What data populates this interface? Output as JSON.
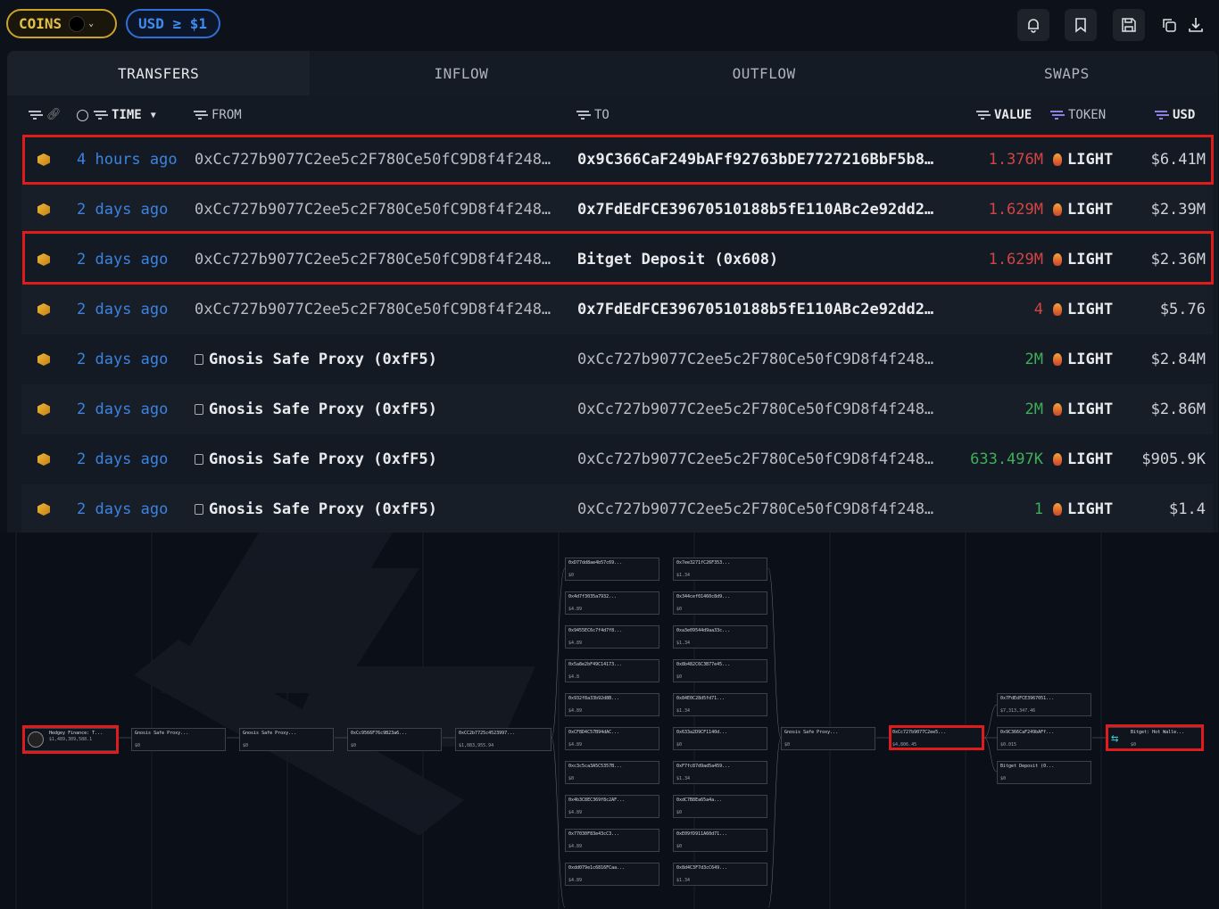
{
  "toolbar": {
    "coins_label": "COINS",
    "usd_filter": "USD ≥ $1"
  },
  "tabs": [
    "TRANSFERS",
    "INFLOW",
    "OUTFLOW",
    "SWAPS"
  ],
  "columns": {
    "time": "TIME",
    "from": "FROM",
    "to": "TO",
    "value": "VALUE",
    "token": "TOKEN",
    "usd": "USD"
  },
  "rows": [
    {
      "time": "4 hours ago",
      "from": "0xCc727b9077C2ee5c2F780Ce50fC9D8f4f248…",
      "to": "0x9C366CaF249bAFf92763bDE7727216BbF5b8…",
      "value": "1.376M",
      "token": "LIGHT",
      "usd": "$6.41M",
      "highlighted": true
    },
    {
      "time": "2 days ago",
      "from": "0xCc727b9077C2ee5c2F780Ce50fC9D8f4f248…",
      "to": "0x7FdEdFCE39670510188b5fE110ABc2e92dd2…",
      "value": "1.629M",
      "token": "LIGHT",
      "usd": "$2.39M",
      "highlighted": false
    },
    {
      "time": "2 days ago",
      "from": "0xCc727b9077C2ee5c2F780Ce50fC9D8f4f248…",
      "to": "Bitget Deposit (0x608)",
      "value": "1.629M",
      "token": "LIGHT",
      "usd": "$2.36M",
      "highlighted": true
    },
    {
      "time": "2 days ago",
      "from": "0xCc727b9077C2ee5c2F780Ce50fC9D8f4f248…",
      "to": "0x7FdEdFCE39670510188b5fE110ABc2e92dd2…",
      "value": "4",
      "token": "LIGHT",
      "usd": "$5.76",
      "highlighted": false
    },
    {
      "time": "2 days ago",
      "from": "Gnosis Safe Proxy (0xfF5)",
      "to": "0xCc727b9077C2ee5c2F780Ce50fC9D8f4f248…",
      "value": "2M",
      "token": "LIGHT",
      "usd": "$2.84M",
      "highlighted": false
    },
    {
      "time": "2 days ago",
      "from": "Gnosis Safe Proxy (0xfF5)",
      "to": "0xCc727b9077C2ee5c2F780Ce50fC9D8f4f248…",
      "value": "2M",
      "token": "LIGHT",
      "usd": "$2.86M",
      "highlighted": false
    },
    {
      "time": "2 days ago",
      "from": "Gnosis Safe Proxy (0xfF5)",
      "to": "0xCc727b9077C2ee5c2F780Ce50fC9D8f4f248…",
      "value": "633.497K",
      "token": "LIGHT",
      "usd": "$905.9K",
      "highlighted": false
    },
    {
      "time": "2 days ago",
      "from": "Gnosis Safe Proxy (0xfF5)",
      "to": "0xCc727b9077C2ee5c2F780Ce50fC9D8f4f248…",
      "value": "1",
      "token": "LIGHT",
      "usd": "$1.4",
      "highlighted": false
    }
  ],
  "graph": {
    "chain": [
      {
        "title": "Hedgey Finance: T...",
        "value": "$1,489,309,588.1"
      },
      {
        "title": "Gnosis Safe Proxy...",
        "value": "$0"
      },
      {
        "title": "Gnosis Safe Proxy...",
        "value": "$0"
      },
      {
        "title": "0xCc9566F76c9B23a6...",
        "value": "$0"
      },
      {
        "title": "0xCC2b7725c4523997...",
        "value": "$1,083,955.94"
      }
    ],
    "middle_left": [
      {
        "title": "0xD77dd8ae4b57c69...",
        "value": "$0"
      },
      {
        "title": "0x4d7f3035a7932...",
        "value": "$4.89"
      },
      {
        "title": "0x9455EC6c7f4d7f8...",
        "value": "$4.89"
      },
      {
        "title": "0x5a8e2bF49C14173...",
        "value": "$4.8"
      },
      {
        "title": "0x932f8a33b92d8B...",
        "value": "$4.89"
      },
      {
        "title": "0xCF8D4C57B94dAC...",
        "value": "$4.89"
      },
      {
        "title": "0xc3c5ca3A5C5357B...",
        "value": "$0"
      },
      {
        "title": "0x4b3C8EC369f8c2AF...",
        "value": "$4.89"
      },
      {
        "title": "0x77030F83e43cC3...",
        "value": "$4.89"
      },
      {
        "title": "0xdd079e1c6816FCaa...",
        "value": "$4.89"
      }
    ],
    "middle_right": [
      {
        "title": "0x7ee3271fC26F353...",
        "value": "$1.34"
      },
      {
        "title": "0x344cef01460c8d9...",
        "value": "$0"
      },
      {
        "title": "0xa3e09544d9aa33c...",
        "value": "$1.34"
      },
      {
        "title": "0x8b482C6C3B77e45...",
        "value": "$0"
      },
      {
        "title": "0x84E0C28d5fd71...",
        "value": "$1.34"
      },
      {
        "title": "0x633a2D9CF1140d...",
        "value": "$0"
      },
      {
        "title": "0xF7fc87d9ad5a459...",
        "value": "$1.34"
      },
      {
        "title": "0xdC7B8Ea65a4a...",
        "value": "$0"
      },
      {
        "title": "0xE09fD911A60d71...",
        "value": "$0"
      },
      {
        "title": "0x8d4C3F7d3cC649...",
        "value": "$1.34"
      }
    ],
    "right": [
      {
        "title": "Gnosis Safe Proxy...",
        "value": "$0"
      },
      {
        "title": "0xCc727b9077C2ee5...",
        "value": "$4,806.45"
      },
      {
        "title": "0x7FdEdFCE3967051...",
        "value": "$7,313,347.46"
      },
      {
        "title": "0x9C366CaF249bAFf...",
        "value": "$0.015"
      },
      {
        "title": "Bitget Deposit (0...",
        "value": "$0"
      },
      {
        "title": "Bitget: Hot Walle...",
        "value": "$0"
      }
    ]
  },
  "colors": {
    "accent_blue": "#3b83e0",
    "value_red": "#d24545",
    "value_green": "#3fae5b",
    "highlight_box": "#e01b1b",
    "coins_gold": "#c9a227"
  }
}
